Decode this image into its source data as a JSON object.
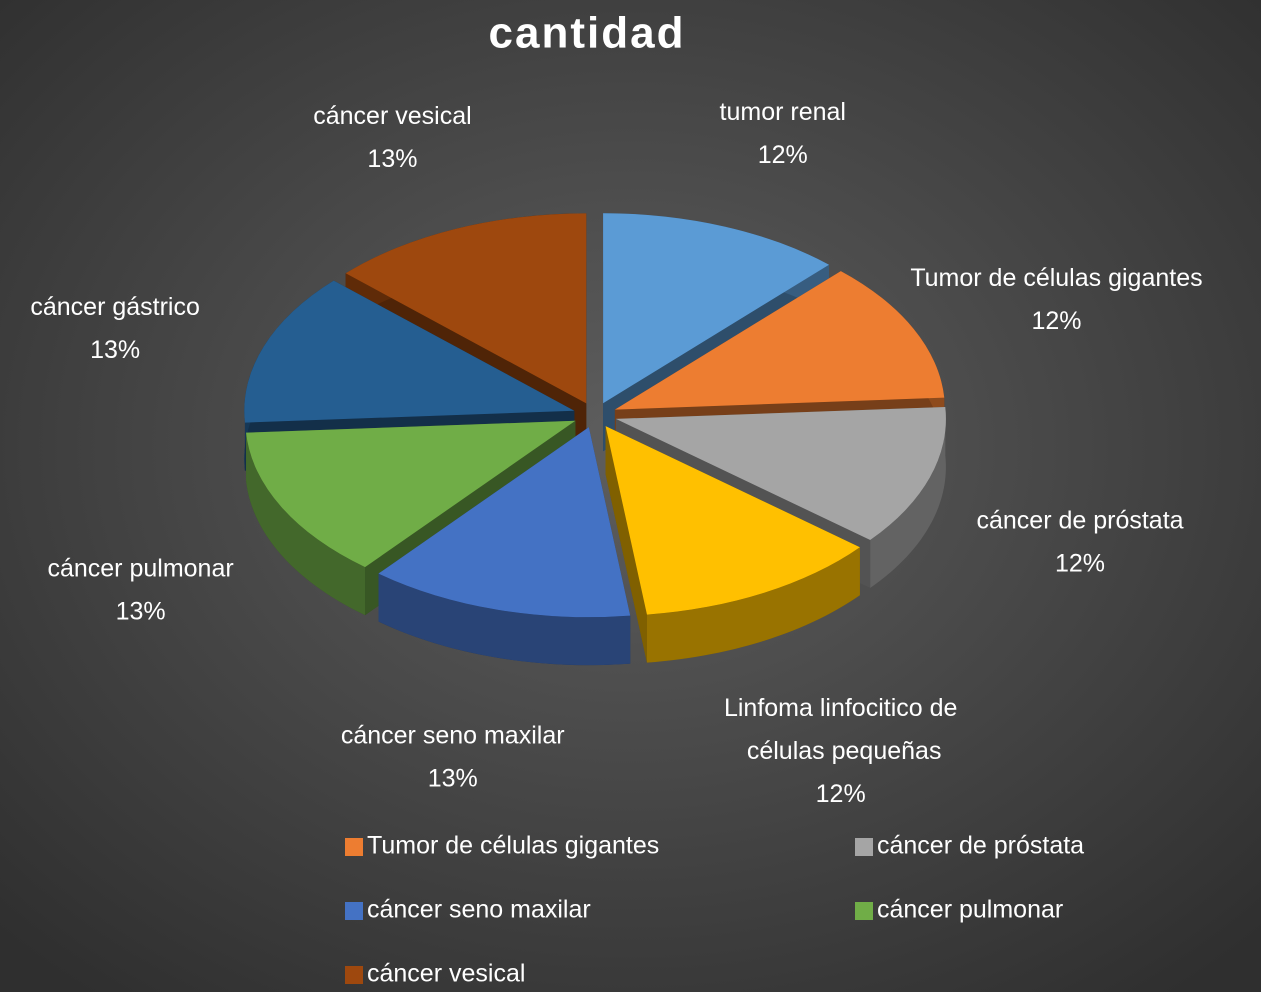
{
  "chart_data": {
    "type": "pie",
    "title": "cantidad",
    "categories": [
      "tumor renal",
      "Tumor de células gigantes",
      "cáncer de próstata",
      "Linfoma linfocitico de células pequeñas",
      "cáncer seno maxilar",
      "cáncer pulmonar",
      "cáncer gástrico",
      "cáncer vesical"
    ],
    "values": [
      12,
      12,
      12,
      12,
      13,
      13,
      13,
      13
    ],
    "value_labels": [
      "12%",
      "12%",
      "12%",
      "12%",
      "13%",
      "13%",
      "13%",
      "13%"
    ],
    "colors": [
      "#5b9bd5",
      "#ed7d31",
      "#a5a5a5",
      "#ffc000",
      "#4472c4",
      "#70ad47",
      "#255e91",
      "#9e480e"
    ],
    "legend": "bottom"
  }
}
